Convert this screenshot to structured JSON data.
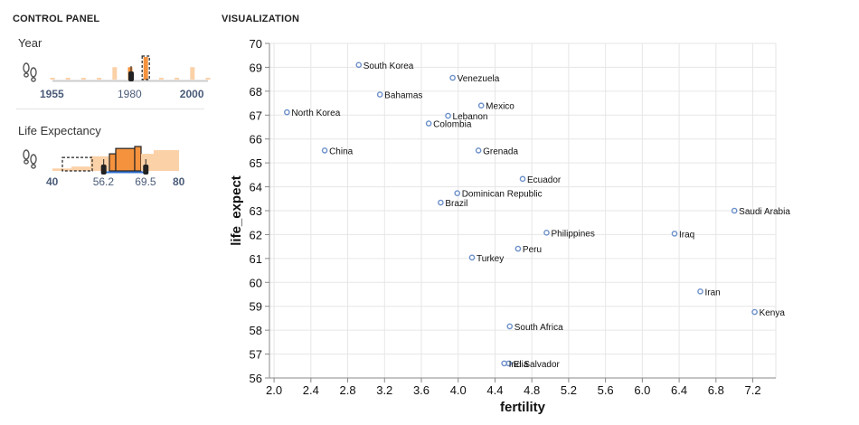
{
  "control_panel": {
    "title": "CONTROL PANEL",
    "filters": [
      {
        "label": "Year",
        "icon": "footprints-icon",
        "range": [
          1955,
          2005
        ],
        "selection": [
          1980,
          1985
        ],
        "tick_labels": [
          {
            "text": "1955",
            "value": 1955,
            "bold": true
          },
          {
            "text": "1980",
            "value": 1980,
            "bold": false
          },
          {
            "text": "2000",
            "value": 2000,
            "bold": true
          }
        ],
        "bars": [
          {
            "value": 1955,
            "height": 0.08
          },
          {
            "value": 1960,
            "height": 0.08
          },
          {
            "value": 1965,
            "height": 0.08
          },
          {
            "value": 1970,
            "height": 0.08
          },
          {
            "value": 1975,
            "height": 0.55
          },
          {
            "value": 1980,
            "height": 0.55
          },
          {
            "value": 1985,
            "height": 1.0
          },
          {
            "value": 1990,
            "height": 0.08
          },
          {
            "value": 1995,
            "height": 0.08
          },
          {
            "value": 2000,
            "height": 0.55
          },
          {
            "value": 2005,
            "height": 0.08
          }
        ]
      },
      {
        "label": "Life Expectancy",
        "icon": "footprints-icon",
        "range": [
          40,
          80
        ],
        "selection": [
          56.2,
          69.5
        ],
        "tick_labels": [
          {
            "text": "40",
            "value": 40,
            "bold": true
          },
          {
            "text": "56.2",
            "value": 56.2,
            "bold": false
          },
          {
            "text": "69.5",
            "value": 69.5,
            "bold": false
          },
          {
            "text": "80",
            "value": 80,
            "bold": true
          }
        ],
        "bars": [
          {
            "from": 40,
            "to": 46,
            "height": 0.1
          },
          {
            "from": 46,
            "to": 52,
            "height": 0.18
          },
          {
            "from": 52,
            "to": 58,
            "height": 0.6
          },
          {
            "from": 58,
            "to": 60,
            "height": 0.7
          },
          {
            "from": 60,
            "to": 66,
            "height": 0.92
          },
          {
            "from": 66,
            "to": 68,
            "height": 1.0
          },
          {
            "from": 68,
            "to": 72,
            "height": 0.7
          },
          {
            "from": 72,
            "to": 80,
            "height": 0.85
          }
        ]
      }
    ]
  },
  "visualization": {
    "title": "VISUALIZATION"
  },
  "colors": {
    "bar_active": "#f5923e",
    "bar_inactive": "#fbd1a8",
    "brush_fill": "#f5923e",
    "point_stroke": "#6b8fc9",
    "axis": "#888888",
    "grid": "#e6e6e6",
    "selection_line": "#2f6fcf"
  },
  "chart_data": {
    "type": "scatter",
    "xlabel": "fertility",
    "ylabel": "life_expect",
    "xlim": [
      1.95,
      7.45
    ],
    "ylim": [
      56,
      70
    ],
    "xticks": [
      2.0,
      2.4,
      2.8,
      3.2,
      3.6,
      4.0,
      4.4,
      4.8,
      5.2,
      5.6,
      6.0,
      6.4,
      6.8,
      7.2
    ],
    "xtick_labels": [
      "2.0",
      "2.4",
      "2.8",
      "3.2",
      "3.6",
      "4.0",
      "4.4",
      "4.8",
      "5.2",
      "5.6",
      "6.0",
      "6.4",
      "6.8",
      "7.2"
    ],
    "yticks": [
      56,
      57,
      58,
      59,
      60,
      61,
      62,
      63,
      64,
      65,
      66,
      67,
      68,
      69,
      70
    ],
    "ytick_labels": [
      "56",
      "57",
      "58",
      "59",
      "60",
      "61",
      "62",
      "63",
      "64",
      "65",
      "66",
      "67",
      "68",
      "69",
      "70"
    ],
    "grid": true,
    "points": [
      {
        "label": "South Korea",
        "x": 2.92,
        "y": 69.1
      },
      {
        "label": "Venezuela",
        "x": 3.94,
        "y": 68.56
      },
      {
        "label": "Bahamas",
        "x": 3.15,
        "y": 67.86
      },
      {
        "label": "Mexico",
        "x": 4.25,
        "y": 67.4
      },
      {
        "label": "North Korea",
        "x": 2.14,
        "y": 67.12
      },
      {
        "label": "Lebanon",
        "x": 3.89,
        "y": 66.97
      },
      {
        "label": "Colombia",
        "x": 3.68,
        "y": 66.65
      },
      {
        "label": "China",
        "x": 2.55,
        "y": 65.52
      },
      {
        "label": "Grenada",
        "x": 4.22,
        "y": 65.52
      },
      {
        "label": "Ecuador",
        "x": 4.7,
        "y": 64.33
      },
      {
        "label": "Dominican Republic",
        "x": 3.99,
        "y": 63.73
      },
      {
        "label": "Brazil",
        "x": 3.81,
        "y": 63.34
      },
      {
        "label": "Saudi Arabia",
        "x": 7.0,
        "y": 63.0
      },
      {
        "label": "Philippines",
        "x": 4.96,
        "y": 62.08
      },
      {
        "label": "Iraq",
        "x": 6.35,
        "y": 62.04
      },
      {
        "label": "Peru",
        "x": 4.65,
        "y": 61.41
      },
      {
        "label": "Turkey",
        "x": 4.15,
        "y": 61.04
      },
      {
        "label": "Iran",
        "x": 6.63,
        "y": 59.62
      },
      {
        "label": "Kenya",
        "x": 7.22,
        "y": 58.76
      },
      {
        "label": "South Africa",
        "x": 4.56,
        "y": 58.16
      },
      {
        "label": "El Salvador",
        "x": 4.55,
        "y": 56.61
      },
      {
        "label": "India",
        "x": 4.5,
        "y": 56.61
      }
    ]
  }
}
